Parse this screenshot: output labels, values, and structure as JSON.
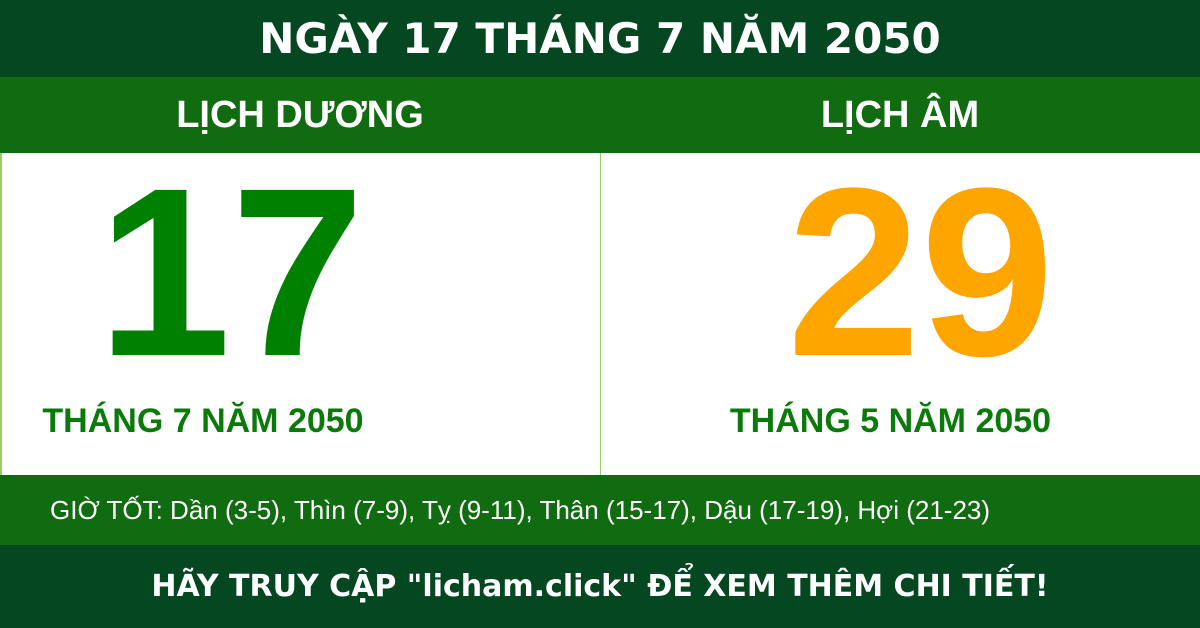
{
  "title": "NGÀY 17 THÁNG 7 NĂM 2050",
  "solar": {
    "heading": "LỊCH DƯƠNG",
    "day": "17",
    "month_year": "THÁNG 7 NĂM 2050"
  },
  "lunar": {
    "heading": "LỊCH ÂM",
    "day": "29",
    "month_year": "THÁNG 5 NĂM 2050"
  },
  "good_hours": "GIỜ TỐT: Dần (3-5), Thìn (7-9), Tỵ (9-11), Thân (15-17), Dậu (17-19), Hợi (21-23)",
  "footer": "HÃY TRUY CẬP \"licham.click\" ĐỂ XEM THÊM CHI TIẾT!",
  "colors": {
    "dark_green": "#044721",
    "green": "#116b10",
    "solar_day": "#008000",
    "lunar_day": "#ffa500"
  }
}
